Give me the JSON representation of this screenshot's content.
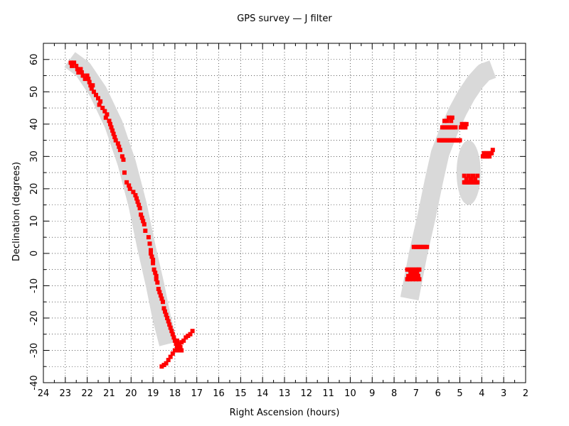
{
  "chart_data": {
    "type": "scatter",
    "title": "GPS survey — J filter",
    "xlabel": "Right Ascension (hours)",
    "ylabel": "Declination (degrees)",
    "xlim": [
      24,
      2
    ],
    "ylim": [
      -40,
      65
    ],
    "x_ticks": [
      24,
      23,
      22,
      21,
      20,
      19,
      18,
      17,
      16,
      15,
      14,
      13,
      12,
      11,
      10,
      9,
      8,
      7,
      6,
      5,
      4,
      3,
      2
    ],
    "y_ticks": [
      -40,
      -30,
      -20,
      -10,
      0,
      10,
      20,
      30,
      40,
      50,
      60
    ],
    "grid": true,
    "marker_color": "#ff0000",
    "band_color": "#d9d9d9",
    "galactic_plane_bands": [
      {
        "name": "",
        "ra": [
          22.8,
          22.2,
          21.5,
          20.8,
          20.2,
          19.7,
          19.3,
          18.9,
          18.6,
          18.3
        ],
        "dec": [
          60,
          57,
          50,
          40,
          28,
          15,
          2,
          -10,
          -20,
          -28
        ]
      },
      {
        "name": "",
        "ra": [
          7.3,
          6.9,
          6.5,
          6.2,
          5.9,
          5.5,
          5.1,
          4.7,
          4.3,
          3.9,
          3.5
        ],
        "dec": [
          -14,
          0,
          12,
          22,
          31,
          38,
          44,
          49,
          53,
          56,
          57
        ]
      }
    ],
    "ellipse_region": {
      "ra": 4.6,
      "dec": 25,
      "half_width_ra": 0.55,
      "half_height_dec": 10
    },
    "series": [
      {
        "x": [
          22.75,
          22.7,
          22.6,
          22.5,
          22.45,
          22.4,
          22.3,
          22.25,
          22.2,
          22.1,
          22.0,
          21.95,
          21.9,
          21.85,
          21.8,
          21.75,
          21.7,
          21.6,
          21.5,
          21.45,
          21.4,
          21.3,
          21.2,
          21.15,
          21.1,
          21.0,
          20.95,
          20.9,
          20.85,
          20.8,
          20.75,
          20.7,
          20.6,
          20.55,
          20.5,
          20.4,
          20.35,
          20.3,
          20.2,
          20.1,
          20.05,
          19.9,
          19.8,
          19.75,
          19.7,
          19.65,
          19.6,
          19.55,
          19.5,
          19.45,
          19.4,
          19.35,
          19.2,
          19.15,
          19.1,
          19.1,
          19.05,
          19.0,
          19.0,
          18.95,
          18.9,
          18.85,
          18.85,
          18.8,
          18.75,
          18.7,
          18.65,
          18.6,
          18.55,
          18.5,
          18.45,
          18.4,
          18.35,
          18.3,
          18.25,
          18.2,
          18.15,
          18.1,
          18.05,
          18.0,
          17.95,
          17.9,
          17.85,
          17.85,
          17.8,
          17.75,
          17.7
        ],
        "y": [
          59,
          58,
          59,
          58,
          57,
          56,
          57,
          56,
          55,
          54,
          55,
          54,
          53,
          52,
          51,
          52,
          50,
          49,
          48,
          46,
          47,
          45,
          44,
          42,
          43,
          41,
          40,
          39,
          38,
          37,
          36,
          35,
          34,
          33,
          32,
          30,
          29,
          25,
          22,
          21,
          20,
          19,
          18,
          17,
          16,
          15,
          14,
          12,
          11,
          10,
          9,
          7,
          5,
          3,
          1,
          0,
          -1,
          -2,
          -3,
          -5,
          -6,
          -7,
          -8,
          -9,
          -11,
          -12,
          -13,
          -14,
          -15,
          -17,
          -18,
          -19,
          -20,
          -21,
          -22,
          -23,
          -24,
          -25,
          -26,
          -27,
          -28,
          -27,
          -29,
          -30,
          -28,
          -29,
          -30
        ]
      },
      {
        "x": [
          18.6,
          18.5,
          18.4,
          18.3,
          18.2,
          18.1,
          18.0,
          17.9,
          17.8,
          17.7,
          17.6,
          17.5,
          17.4,
          17.3,
          17.2
        ],
        "y": [
          -35,
          -34.5,
          -34,
          -33,
          -32,
          -31,
          -30,
          -29,
          -28,
          -27.5,
          -27,
          -26,
          -25.5,
          -25,
          -24
        ]
      },
      {
        "x": [
          7.4,
          7.35,
          7.3,
          7.25,
          7.2,
          7.15,
          7.1,
          7.05,
          7.0,
          6.95,
          6.9,
          6.85,
          7.4,
          7.3,
          7.2,
          7.1,
          7.0,
          6.9,
          6.85,
          7.1,
          7.0,
          6.9,
          6.8,
          6.7,
          6.6,
          6.5
        ],
        "y": [
          -8,
          -7,
          -8,
          -6,
          -7,
          -8,
          -6,
          -7,
          -8,
          -6,
          -7,
          -8,
          -5,
          -5,
          -5,
          -5,
          -5,
          -5,
          -5,
          2,
          2,
          2,
          2,
          2,
          2,
          2
        ]
      },
      {
        "x": [
          5.95,
          5.9,
          5.85,
          5.8,
          5.75,
          5.7,
          5.65,
          5.6,
          5.55,
          5.5,
          5.45,
          5.4,
          5.35,
          5.3,
          5.25,
          5.2,
          5.15,
          5.1,
          5.05,
          5.0,
          4.95,
          4.9,
          4.85,
          4.8,
          4.75,
          4.7,
          5.8,
          5.7,
          5.6,
          5.5,
          5.4,
          5.3,
          5.2,
          5.7,
          5.6,
          5.5,
          5.4,
          5.35
        ],
        "y": [
          35,
          35,
          35,
          35,
          35,
          35,
          35,
          35,
          35,
          35,
          35,
          35,
          35,
          35,
          35,
          35,
          35,
          35,
          35,
          35,
          39,
          40,
          39,
          40,
          39,
          40,
          39,
          39,
          39,
          39,
          39,
          39,
          39,
          41,
          41,
          42,
          41,
          42
        ]
      },
      {
        "x": [
          4.8,
          4.75,
          4.7,
          4.65,
          4.6,
          4.55,
          4.5,
          4.45,
          4.4,
          4.35,
          4.3,
          4.25,
          4.2,
          4.8,
          4.7,
          4.6,
          4.5,
          4.4,
          4.3,
          4.2
        ],
        "y": [
          22,
          22,
          22,
          22,
          22,
          22,
          22,
          22,
          22,
          22,
          22,
          22,
          22,
          24,
          23,
          24,
          23,
          24,
          23,
          24
        ]
      },
      {
        "x": [
          3.95,
          3.9,
          3.85,
          3.8,
          3.75,
          3.7,
          3.65,
          3.6,
          3.55,
          3.5
        ],
        "y": [
          30,
          31,
          30,
          31,
          30,
          31,
          30,
          31,
          31,
          32
        ]
      }
    ]
  }
}
